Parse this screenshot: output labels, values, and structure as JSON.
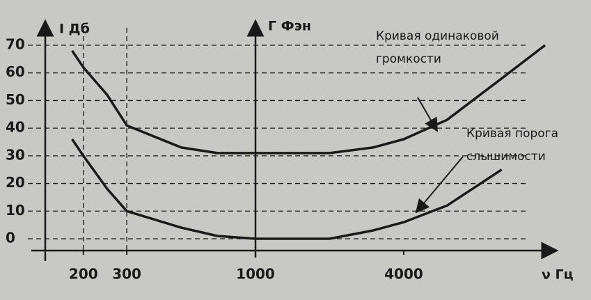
{
  "chart_data": {
    "type": "line",
    "y_label": "I Дб",
    "mid_axis_label": "Г Фэн",
    "x_label": "ν Гц",
    "xscale": "log",
    "xlim": [
      140,
      15700
    ],
    "ylim": [
      0,
      70
    ],
    "xticks": [
      200,
      300,
      1000,
      4000
    ],
    "yticks": [
      0,
      10,
      20,
      30,
      40,
      50,
      60,
      70
    ],
    "x_dashed": [
      200,
      300
    ],
    "mid_axis_x": 1000,
    "grid": true,
    "series": [
      {
        "name": "Кривая одинаковой громкости",
        "color": "#1a1a1a",
        "x": [
          180,
          200,
          250,
          300,
          500,
          700,
          1000,
          2000,
          3000,
          4000,
          6000,
          10000,
          15000
        ],
        "values": [
          68,
          62,
          52,
          41,
          33,
          31,
          31,
          31,
          33,
          36,
          43,
          58,
          70
        ]
      },
      {
        "name": "Кривая порога слышимости",
        "color": "#1a1a1a",
        "x": [
          180,
          200,
          250,
          300,
          500,
          700,
          1000,
          2000,
          3000,
          4000,
          6000,
          10000
        ],
        "values": [
          36,
          30,
          18,
          10,
          4,
          1,
          0,
          0,
          3,
          6,
          12,
          25
        ]
      }
    ]
  }
}
